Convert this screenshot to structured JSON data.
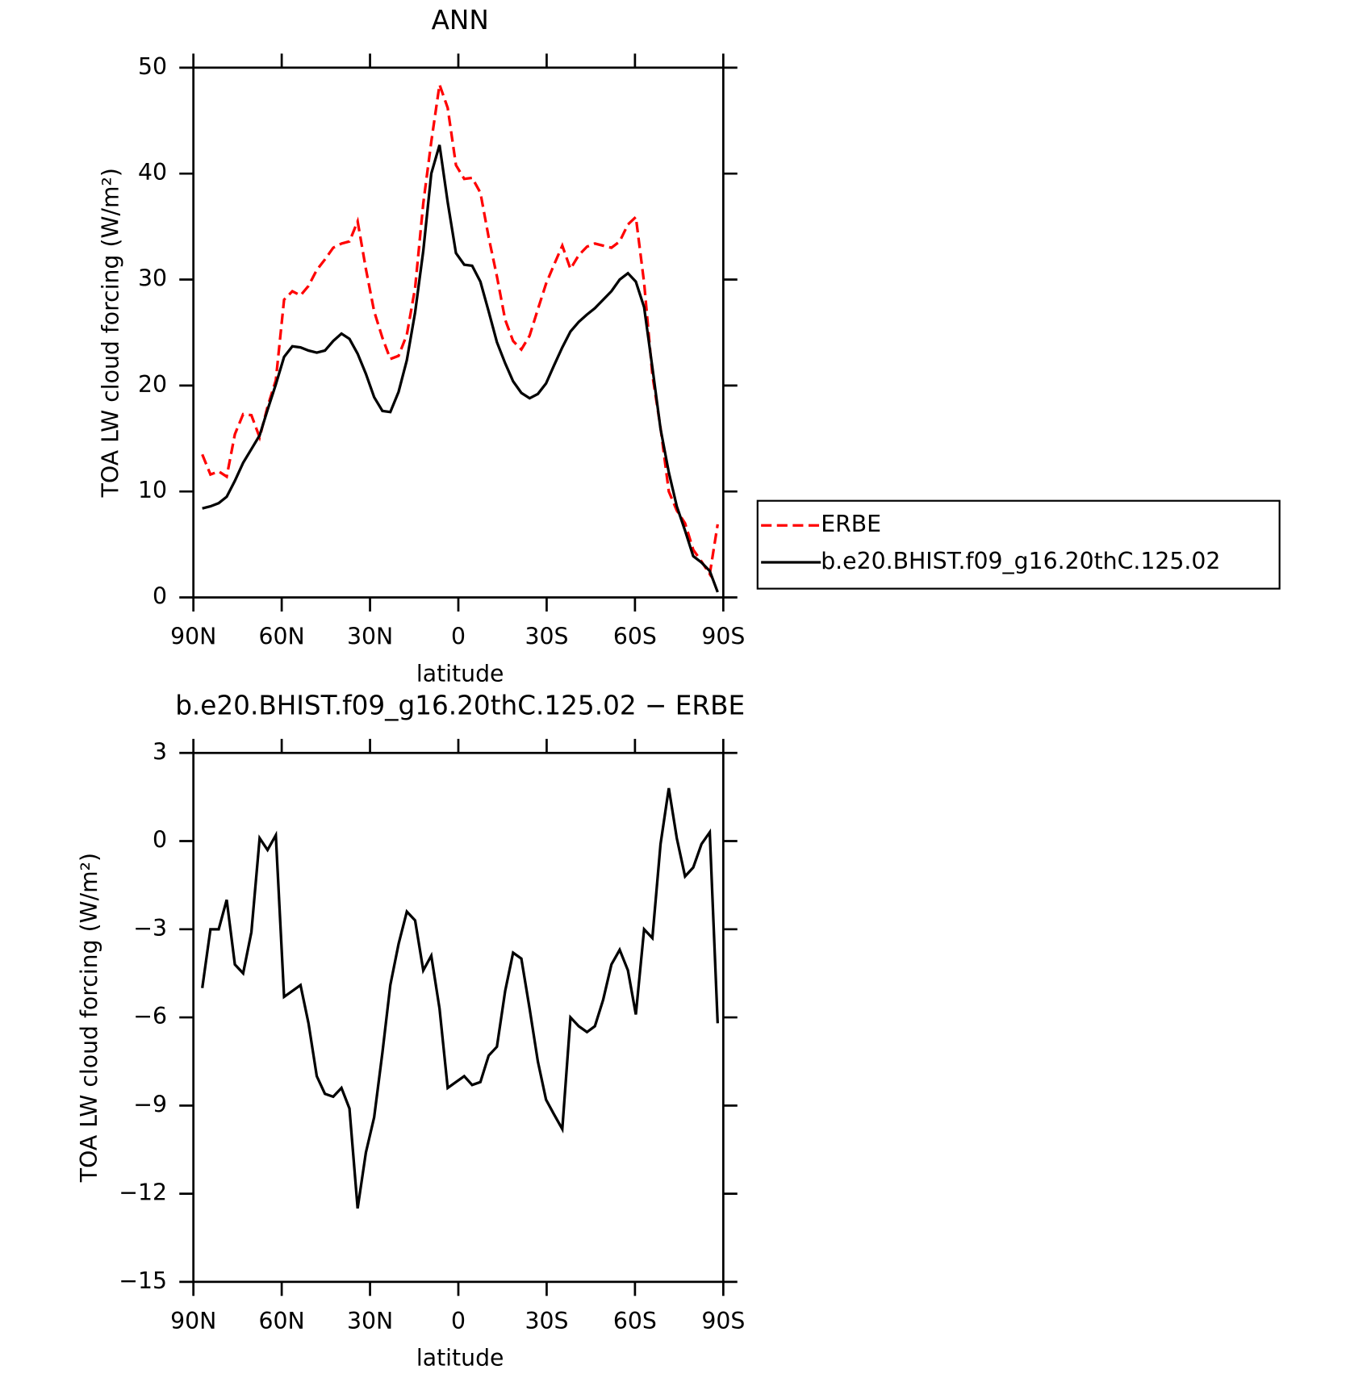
{
  "chart_data": [
    {
      "type": "line",
      "title": "ANN",
      "x_label": "latitude",
      "y_label": "TOA LW cloud forcing (W/m²)",
      "x": [
        87.0,
        84.2,
        81.4,
        78.7,
        75.9,
        73.1,
        70.3,
        67.5,
        64.8,
        62.0,
        59.2,
        56.4,
        53.6,
        50.9,
        48.1,
        45.3,
        42.5,
        39.7,
        37.0,
        34.2,
        31.4,
        28.6,
        25.8,
        23.1,
        20.3,
        17.5,
        14.7,
        11.9,
        9.2,
        6.4,
        3.6,
        0.8,
        -2.0,
        -4.7,
        -7.5,
        -10.3,
        -13.1,
        -15.9,
        -18.6,
        -21.4,
        -24.2,
        -27.0,
        -29.8,
        -32.5,
        -35.3,
        -38.1,
        -40.9,
        -43.7,
        -46.4,
        -49.2,
        -52.0,
        -54.8,
        -57.6,
        -60.3,
        -63.1,
        -65.9,
        -68.7,
        -71.5,
        -74.2,
        -77.0,
        -79.8,
        -82.6,
        -85.4,
        -88.1
      ],
      "series": [
        {
          "name": "ERBE",
          "color": "#ff0000",
          "line_style": "dashed",
          "values": [
            13.5,
            11.6,
            11.9,
            11.4,
            15.4,
            17.3,
            17.2,
            15.1,
            18.0,
            20.5,
            28.1,
            28.9,
            28.5,
            29.4,
            30.9,
            31.9,
            33.0,
            33.4,
            33.6,
            35.5,
            31.0,
            27.0,
            24.5,
            22.5,
            22.8,
            24.8,
            29.2,
            37.2,
            43.0,
            48.4,
            46.2,
            40.8,
            39.5,
            39.6,
            38.2,
            34.0,
            30.3,
            26.2,
            24.2,
            23.4,
            24.7,
            27.2,
            29.6,
            31.4,
            33.2,
            31.0,
            32.3,
            33.1,
            33.4,
            33.2,
            33.0,
            33.6,
            35.2,
            35.9,
            29.7,
            21.0,
            16.0,
            10.0,
            8.2,
            7.0,
            4.5,
            3.4,
            2.2,
            6.9
          ]
        },
        {
          "name": "b.e20.BHIST.f09_g16.20thC.125.02",
          "color": "#000000",
          "line_style": "solid",
          "values": [
            8.4,
            8.6,
            8.9,
            9.5,
            11.0,
            12.7,
            14.0,
            15.3,
            17.7,
            20.1,
            22.7,
            23.7,
            23.6,
            23.3,
            23.1,
            23.3,
            24.2,
            24.9,
            24.4,
            23.0,
            21.1,
            18.9,
            17.6,
            17.5,
            19.4,
            22.4,
            26.9,
            32.7,
            40.0,
            42.7,
            37.3,
            32.5,
            31.4,
            31.3,
            29.8,
            27.0,
            24.1,
            22.1,
            20.4,
            19.3,
            18.8,
            19.2,
            20.2,
            21.9,
            23.6,
            25.1,
            26.0,
            26.7,
            27.3,
            28.1,
            28.9,
            30.0,
            30.6,
            29.8,
            27.4,
            21.7,
            15.9,
            11.8,
            8.6,
            6.3,
            3.9,
            3.3,
            2.5,
            0.5
          ]
        }
      ],
      "xlim": [
        90,
        -90
      ],
      "xticks": [
        {
          "value": 90,
          "label": "90N"
        },
        {
          "value": 60,
          "label": "60N"
        },
        {
          "value": 30,
          "label": "30N"
        },
        0,
        {
          "value": -30,
          "label": "30S"
        },
        {
          "value": -60,
          "label": "60S"
        },
        {
          "value": -90,
          "label": "90S"
        }
      ],
      "ylim": [
        0,
        50
      ],
      "yticks": [
        0,
        10,
        20,
        30,
        40,
        50
      ],
      "legend": "right"
    },
    {
      "type": "line",
      "title": "b.e20.BHIST.f09_g16.20thC.125.02 − ERBE",
      "x_label": "latitude",
      "y_label": "TOA LW cloud forcing (W/m²)",
      "x": [
        87.0,
        84.2,
        81.4,
        78.7,
        75.9,
        73.1,
        70.3,
        67.5,
        64.8,
        62.0,
        59.2,
        56.4,
        53.6,
        50.9,
        48.1,
        45.3,
        42.5,
        39.7,
        37.0,
        34.2,
        31.4,
        28.6,
        25.8,
        23.1,
        20.3,
        17.5,
        14.7,
        11.9,
        9.2,
        6.4,
        3.6,
        0.8,
        -2.0,
        -4.7,
        -7.5,
        -10.3,
        -13.1,
        -15.9,
        -18.6,
        -21.4,
        -24.2,
        -27.0,
        -29.8,
        -32.5,
        -35.3,
        -38.1,
        -40.9,
        -43.7,
        -46.4,
        -49.2,
        -52.0,
        -54.8,
        -57.6,
        -60.3,
        -63.1,
        -65.9,
        -68.7,
        -71.5,
        -74.2,
        -77.0,
        -79.8,
        -82.6,
        -85.4,
        -88.1
      ],
      "series": [
        {
          "color": "#000000",
          "line_style": "solid",
          "values": [
            -5.0,
            -3.0,
            -3.0,
            -2.0,
            -4.2,
            -4.5,
            -3.1,
            0.1,
            -0.3,
            0.2,
            -5.3,
            -5.1,
            -4.9,
            -6.2,
            -8.0,
            -8.6,
            -8.7,
            -8.4,
            -9.1,
            -12.5,
            -10.6,
            -9.4,
            -7.2,
            -4.9,
            -3.5,
            -2.4,
            -2.7,
            -4.4,
            -3.9,
            -5.7,
            -8.4,
            -8.2,
            -8.0,
            -8.3,
            -8.2,
            -7.3,
            -7.0,
            -5.1,
            -3.8,
            -4.0,
            -5.7,
            -7.5,
            -8.8,
            -9.3,
            -9.8,
            -6.0,
            -6.3,
            -6.5,
            -6.3,
            -5.4,
            -4.2,
            -3.7,
            -4.4,
            -5.9,
            -3.0,
            -3.3,
            -0.1,
            1.8,
            0.1,
            -1.2,
            -0.9,
            -0.1,
            0.3,
            -6.2
          ]
        }
      ],
      "xlim": [
        90,
        -90
      ],
      "xticks": [
        {
          "value": 90,
          "label": "90N"
        },
        {
          "value": 60,
          "label": "60N"
        },
        {
          "value": 30,
          "label": "30N"
        },
        0,
        {
          "value": -30,
          "label": "30S"
        },
        {
          "value": -60,
          "label": "60S"
        },
        {
          "value": -90,
          "label": "90S"
        }
      ],
      "ylim": [
        -15,
        3
      ],
      "yticks": [
        {
          "value": -15,
          "label": "−15"
        },
        {
          "value": -12,
          "label": "−12"
        },
        {
          "value": -9,
          "label": "−9"
        },
        {
          "value": -6,
          "label": "−6"
        },
        {
          "value": -3,
          "label": "−3"
        },
        0,
        3
      ]
    }
  ]
}
